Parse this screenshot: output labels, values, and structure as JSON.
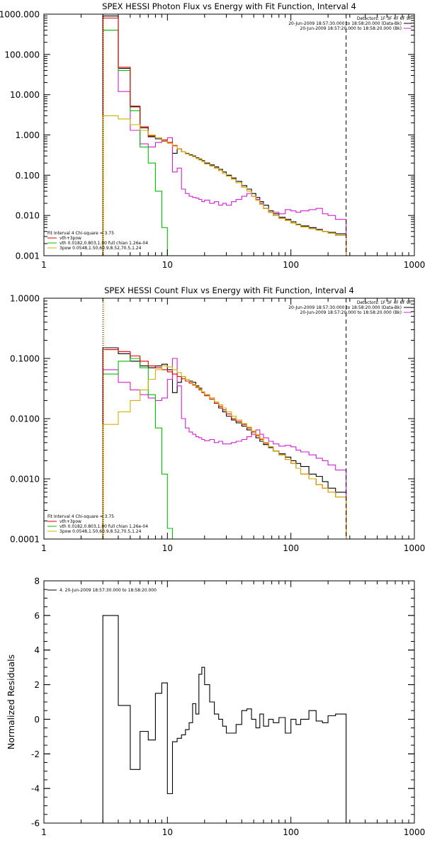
{
  "figure": {
    "background": "#ffffff",
    "axis_color": "#000000"
  },
  "chart_data": [
    {
      "type": "line",
      "title": "SPEX HESSI Photon Flux vs Energy with Fit Function, Interval 4",
      "xlabel": "",
      "ylabel": "",
      "xscale": "log",
      "yscale": "log",
      "xlim": [
        1,
        1000
      ],
      "ylim": [
        0.001,
        1000
      ],
      "xticks": [
        1,
        10,
        100,
        1000
      ],
      "xticklabels": [
        "1",
        "10",
        "100",
        "1000"
      ],
      "yticks": [
        0.001,
        0.01,
        0.1,
        1,
        10,
        100,
        1000
      ],
      "yticklabels": [
        "0.001",
        "0.010",
        "0.100",
        "1.000",
        "10.000",
        "100.000",
        "1000.000"
      ],
      "vlines": [
        {
          "x": 3,
          "style": "dotted",
          "color": "#000000"
        },
        {
          "x": 3,
          "style": "dotted",
          "color": "#e8a000"
        },
        {
          "x": 280,
          "style": "dashed",
          "color": "#000000"
        }
      ],
      "legend_right": {
        "position": "top-right",
        "header": "Detectors: 1F 3F 4F 6F 9F",
        "lines": [
          {
            "text": "20-Jun-2009 18:57:30.000 to 18:58:20.000 (Data-Bk)",
            "color": "#000000"
          },
          {
            "text": "20-Jun-2009 18:57:20.000 to 18:58:20.000 (Bk)",
            "color": "#d020d0"
          }
        ]
      },
      "legend_left": {
        "position": "bottom-left",
        "header": "Fit Interval 4   Chi-square = 3.75",
        "lines": [
          {
            "text": "vth+3pow",
            "color": "#e00000"
          },
          {
            "text": "vth 0.0182,0.803,1.00  full chian 1.26e-04",
            "color": "#00c000"
          },
          {
            "text": "3pow 0.0548,1.50,60.9,8.52,70.5,1.24",
            "color": "#d0b000"
          }
        ]
      },
      "bin_edges": [
        3,
        4,
        5,
        6,
        7,
        8,
        9,
        10,
        11,
        12,
        13,
        14,
        15,
        16,
        17,
        18,
        19,
        20,
        22,
        24,
        26,
        28,
        30,
        33,
        36,
        40,
        44,
        48,
        52,
        56,
        60,
        66,
        72,
        80,
        90,
        100,
        110,
        120,
        140,
        160,
        180,
        200,
        230,
        280
      ],
      "series": [
        {
          "color": "#000000",
          "values": [
            900,
            45,
            5,
            1.5,
            0.9,
            0.8,
            0.7,
            0.65,
            0.35,
            0.45,
            0.38,
            0.35,
            0.32,
            0.3,
            0.27,
            0.25,
            0.23,
            0.2,
            0.18,
            0.16,
            0.14,
            0.12,
            0.1,
            0.085,
            0.07,
            0.055,
            0.045,
            0.035,
            0.028,
            0.022,
            0.018,
            0.013,
            0.011,
            0.009,
            0.008,
            0.007,
            0.006,
            0.0055,
            0.005,
            0.0045,
            0.004,
            0.0038,
            0.0035
          ]
        },
        {
          "color": "#d020d0",
          "values": [
            400,
            12,
            1.3,
            0.6,
            0.5,
            0.65,
            0.7,
            0.85,
            0.12,
            0.15,
            0.045,
            0.035,
            0.03,
            0.028,
            0.027,
            0.025,
            0.022,
            0.024,
            0.02,
            0.022,
            0.018,
            0.02,
            0.018,
            0.022,
            0.025,
            0.03,
            0.035,
            0.03,
            0.025,
            0.02,
            0.015,
            0.012,
            0.012,
            0.011,
            0.014,
            0.013,
            0.012,
            0.013,
            0.014,
            0.015,
            0.011,
            0.01,
            0.008
          ]
        },
        {
          "color": "#00c000",
          "values": [
            400,
            40,
            4,
            0.5,
            0.2,
            0.04,
            0.005,
            0.0008,
            0,
            0,
            0,
            0,
            0,
            0,
            0,
            0,
            0,
            0,
            0,
            0,
            0,
            0,
            0,
            0,
            0,
            0,
            0,
            0,
            0,
            0,
            0,
            0,
            0,
            0,
            0,
            0,
            0,
            0,
            0,
            0,
            0,
            0,
            0
          ]
        },
        {
          "color": "#e00000",
          "values": [
            800,
            48,
            5.2,
            1.6,
            0.95,
            0.85,
            0.75,
            0.65,
            0.55,
            0.45,
            0.38,
            0.34,
            0.31,
            0.29,
            0.26,
            0.24,
            0.22,
            0.19,
            0.17,
            0.15,
            0.13,
            0.11,
            0.095,
            0.08,
            0.065,
            0.05,
            0.04,
            0.03,
            0.024,
            0.019,
            0.015,
            0.012,
            0.01,
            0.0085,
            0.0075,
            0.0065,
            0.0058,
            0.0052,
            0.0047,
            0.0043,
            0.004,
            0.0036,
            0.0032
          ]
        },
        {
          "color": "#d0b000",
          "values": [
            3,
            2.5,
            1.8,
            1.3,
            1,
            0.85,
            0.72,
            0.62,
            0.53,
            0.45,
            0.38,
            0.34,
            0.31,
            0.29,
            0.26,
            0.24,
            0.22,
            0.19,
            0.17,
            0.15,
            0.13,
            0.11,
            0.095,
            0.08,
            0.065,
            0.05,
            0.04,
            0.03,
            0.024,
            0.019,
            0.015,
            0.012,
            0.01,
            0.0085,
            0.0075,
            0.0065,
            0.0058,
            0.0052,
            0.0047,
            0.0043,
            0.004,
            0.0036,
            0.0032
          ]
        }
      ]
    },
    {
      "type": "line",
      "title": "SPEX HESSI Count Flux vs Energy with Fit Function, Interval 4",
      "xlabel": "",
      "ylabel": "",
      "xscale": "log",
      "yscale": "log",
      "xlim": [
        1,
        1000
      ],
      "ylim": [
        0.0001,
        1
      ],
      "xticks": [
        1,
        10,
        100,
        1000
      ],
      "xticklabels": [
        "1",
        "10",
        "100",
        "1000"
      ],
      "yticks": [
        0.0001,
        0.001,
        0.01,
        0.1,
        1
      ],
      "yticklabels": [
        "0.0001",
        "0.0010",
        "0.0100",
        "0.1000",
        "1.0000"
      ],
      "vlines": [
        {
          "x": 3,
          "style": "dotted",
          "color": "#000000"
        },
        {
          "x": 3,
          "style": "dotted",
          "color": "#e8a000"
        },
        {
          "x": 280,
          "style": "dashed",
          "color": "#000000"
        }
      ],
      "legend_right": {
        "position": "top-right",
        "header": "Detectors: 1F 3F 4F 6F 9F",
        "lines": [
          {
            "text": "20-Jun-2009 18:57:30.000 to 18:58:20.000 (Data-Bk)",
            "color": "#000000"
          },
          {
            "text": "20-Jun-2009 18:57:20.000 to 18:58:20.000 (Bk)",
            "color": "#d020d0"
          }
        ]
      },
      "legend_left": {
        "position": "bottom-left",
        "header": "Fit Interval 4   Chi-square = 3.75",
        "lines": [
          {
            "text": "vth+3pow",
            "color": "#e00000"
          },
          {
            "text": "vth 0.0182,0.803,1.00  full chian 1.26e-04",
            "color": "#00c000"
          },
          {
            "text": "3pow 0.0548,1.50,60.9,8.52,70.5,1.24",
            "color": "#d0b000"
          }
        ]
      },
      "bin_edges": [
        3,
        4,
        5,
        6,
        7,
        8,
        9,
        10,
        11,
        12,
        13,
        14,
        15,
        16,
        17,
        18,
        19,
        20,
        22,
        24,
        26,
        28,
        30,
        33,
        36,
        40,
        44,
        48,
        52,
        56,
        60,
        66,
        72,
        80,
        90,
        100,
        110,
        120,
        140,
        160,
        180,
        200,
        230,
        280
      ],
      "series": [
        {
          "color": "#000000",
          "values": [
            0.15,
            0.12,
            0.09,
            0.075,
            0.07,
            0.075,
            0.08,
            0.065,
            0.027,
            0.04,
            0.05,
            0.045,
            0.042,
            0.04,
            0.035,
            0.032,
            0.028,
            0.025,
            0.022,
            0.018,
            0.015,
            0.013,
            0.011,
            0.0095,
            0.0085,
            0.0075,
            0.0065,
            0.0055,
            0.0048,
            0.0042,
            0.0037,
            0.0033,
            0.0029,
            0.0026,
            0.0023,
            0.002,
            0.0018,
            0.0016,
            0.0012,
            0.0011,
            0.0009,
            0.0007,
            0.0006
          ]
        },
        {
          "color": "#d020d0",
          "values": [
            0.065,
            0.04,
            0.03,
            0.025,
            0.022,
            0.02,
            0.022,
            0.045,
            0.1,
            0.035,
            0.01,
            0.007,
            0.006,
            0.0055,
            0.005,
            0.0048,
            0.0045,
            0.0043,
            0.0045,
            0.004,
            0.0042,
            0.0038,
            0.0038,
            0.004,
            0.0042,
            0.0045,
            0.005,
            0.0055,
            0.0065,
            0.0055,
            0.0048,
            0.0042,
            0.0038,
            0.0035,
            0.0036,
            0.0034,
            0.003,
            0.0028,
            0.0025,
            0.0022,
            0.002,
            0.0017,
            0.0014
          ]
        },
        {
          "color": "#00c000",
          "values": [
            0.055,
            0.09,
            0.1,
            0.07,
            0.025,
            0.007,
            0.0012,
            0.00015,
            0,
            0,
            0,
            0,
            0,
            0,
            0,
            0,
            0,
            0,
            0,
            0,
            0,
            0,
            0,
            0,
            0,
            0,
            0,
            0,
            0,
            0,
            0,
            0,
            0,
            0,
            0,
            0,
            0,
            0,
            0,
            0,
            0,
            0,
            0
          ]
        },
        {
          "color": "#e00000",
          "values": [
            0.14,
            0.13,
            0.11,
            0.09,
            0.075,
            0.07,
            0.065,
            0.06,
            0.055,
            0.05,
            0.046,
            0.042,
            0.039,
            0.036,
            0.033,
            0.03,
            0.027,
            0.024,
            0.021,
            0.018,
            0.016,
            0.014,
            0.012,
            0.01,
            0.009,
            0.008,
            0.007,
            0.006,
            0.0052,
            0.0045,
            0.0039,
            0.0034,
            0.0029,
            0.0025,
            0.0021,
            0.0018,
            0.0015,
            0.0012,
            0.001,
            0.0008,
            0.0007,
            0.0006,
            0.0005
          ]
        },
        {
          "color": "#d0b000",
          "values": [
            0.008,
            0.013,
            0.02,
            0.03,
            0.045,
            0.065,
            0.075,
            0.072,
            0.065,
            0.058,
            0.05,
            0.045,
            0.041,
            0.037,
            0.034,
            0.031,
            0.028,
            0.025,
            0.022,
            0.019,
            0.017,
            0.015,
            0.013,
            0.011,
            0.0095,
            0.0083,
            0.0072,
            0.0062,
            0.0054,
            0.0047,
            0.004,
            0.0034,
            0.0029,
            0.0025,
            0.0021,
            0.0018,
            0.0015,
            0.0012,
            0.001,
            0.0008,
            0.0007,
            0.0006,
            0.0005
          ]
        }
      ]
    },
    {
      "type": "line",
      "title": "",
      "xlabel": "",
      "ylabel": "Normalized Residuals",
      "xscale": "log",
      "yscale": "linear",
      "xlim": [
        1,
        1000
      ],
      "ylim": [
        -6,
        8
      ],
      "xticks": [
        1,
        10,
        100,
        1000
      ],
      "xticklabels": [
        "1",
        "10",
        "100",
        "1000"
      ],
      "yticks": [
        -6,
        -4,
        -2,
        0,
        2,
        4,
        6,
        8
      ],
      "yticklabels": [
        "-6",
        "-4",
        "-2",
        "0",
        "2",
        "4",
        "6",
        "8"
      ],
      "vlines": [],
      "legend_right": null,
      "legend_left": {
        "position": "top-left",
        "header": "",
        "lines": [
          {
            "text": "4. 20-Jun-2009 18:57:30.000 to 18:58:20.000",
            "color": "#000000"
          }
        ]
      },
      "bin_edges": [
        3,
        4,
        5,
        6,
        7,
        8,
        9,
        10,
        11,
        12,
        13,
        14,
        15,
        16,
        17,
        18,
        19,
        20,
        22,
        24,
        26,
        28,
        30,
        33,
        36,
        40,
        44,
        48,
        52,
        56,
        60,
        66,
        72,
        80,
        90,
        100,
        110,
        120,
        140,
        160,
        180,
        200,
        230,
        280
      ],
      "drop_to_floor": true,
      "series": [
        {
          "color": "#000000",
          "values": [
            6,
            0.8,
            -2.9,
            -0.7,
            -1.2,
            1.5,
            2.1,
            -4.3,
            -1.3,
            -1.1,
            -0.9,
            -0.6,
            -0.2,
            0.9,
            0.3,
            2.6,
            3.0,
            2.0,
            1.0,
            0.3,
            0,
            -0.4,
            -0.8,
            -0.8,
            -0.3,
            0.5,
            0.6,
            0.0,
            -0.5,
            0.3,
            -0.4,
            0.0,
            -0.2,
            0.1,
            -0.8,
            0.0,
            -0.3,
            0.0,
            0.5,
            -0.1,
            -0.2,
            0.2,
            0.3
          ]
        }
      ]
    }
  ]
}
